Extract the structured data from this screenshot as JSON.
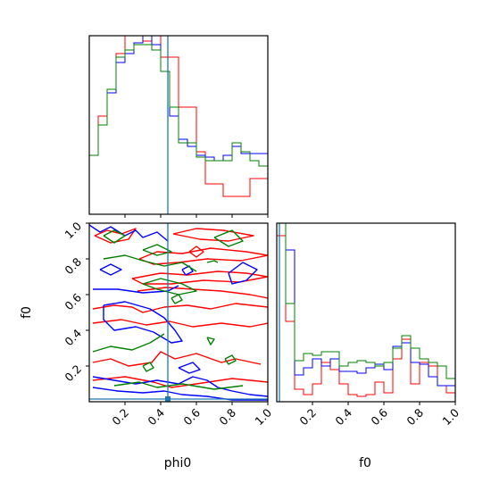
{
  "chart_data": {
    "type": "corner",
    "parameters": [
      "phi0",
      "f0"
    ],
    "xlabels": {
      "phi0": "phi0",
      "f0": "f0"
    },
    "ylabels": {
      "f0": "f0"
    },
    "ticks": {
      "phi0_x": [
        0.2,
        0.4,
        0.6,
        0.8,
        1.0
      ],
      "f0_y": [
        0.2,
        0.4,
        0.6,
        0.8,
        1.0
      ],
      "f0_x": [
        0.2,
        0.4,
        0.6,
        0.8,
        1.0
      ]
    },
    "tick_labels": {
      "phi0_x": [
        "0.2",
        "0.4",
        "0.6",
        "0.8",
        "1.0"
      ],
      "f0_y": [
        "0.2",
        "0.4",
        "0.6",
        "0.8",
        "1.0"
      ],
      "f0_x": [
        "0.2",
        "0.4",
        "0.6",
        "0.8",
        "1.0"
      ]
    },
    "xlim": [
      0,
      1
    ],
    "ylim": [
      0,
      1
    ],
    "truth": {
      "phi0": 0.44,
      "f0": 0.015
    },
    "truth_color": "#1f77b4",
    "series_colors": [
      "#ff0000",
      "#0000ff",
      "#008000"
    ],
    "hist_phi0": {
      "bin_edges": [
        0.0,
        0.05,
        0.1,
        0.15,
        0.2,
        0.25,
        0.3,
        0.35,
        0.4,
        0.45,
        0.5,
        0.55,
        0.6,
        0.65,
        0.7,
        0.75,
        0.8,
        0.85,
        0.9,
        0.95,
        1.0
      ],
      "ymax": 1.0,
      "series": [
        {
          "values": [
            0.33,
            0.55,
            0.7,
            0.9,
            1.0,
            1.0,
            0.97,
            1.0,
            0.88,
            0.88,
            0.6,
            0.6,
            0.35,
            0.17,
            0.17,
            0.1,
            0.1,
            0.1,
            0.2,
            0.2
          ]
        },
        {
          "values": [
            0.33,
            0.5,
            0.68,
            0.85,
            0.9,
            0.96,
            1.0,
            0.95,
            0.8,
            0.55,
            0.42,
            0.38,
            0.33,
            0.32,
            0.3,
            0.33,
            0.38,
            0.34,
            0.34,
            0.34
          ]
        },
        {
          "values": [
            0.33,
            0.5,
            0.7,
            0.88,
            0.92,
            0.95,
            0.95,
            0.92,
            0.8,
            0.6,
            0.4,
            0.4,
            0.32,
            0.3,
            0.3,
            0.3,
            0.4,
            0.35,
            0.3,
            0.27
          ]
        }
      ]
    },
    "hist_f0": {
      "bin_edges": [
        0.0,
        0.05,
        0.1,
        0.15,
        0.2,
        0.25,
        0.3,
        0.35,
        0.4,
        0.45,
        0.5,
        0.55,
        0.6,
        0.65,
        0.7,
        0.75,
        0.8,
        0.85,
        0.9,
        0.95,
        1.0
      ],
      "ymax": 1.0,
      "series": [
        {
          "values": [
            0.93,
            0.45,
            0.07,
            0.04,
            0.1,
            0.22,
            0.18,
            0.1,
            0.04,
            0.03,
            0.04,
            0.11,
            0.05,
            0.24,
            0.35,
            0.1,
            0.22,
            0.2,
            0.09,
            0.05
          ]
        },
        {
          "values": [
            1.0,
            0.85,
            0.15,
            0.19,
            0.24,
            0.2,
            0.24,
            0.17,
            0.17,
            0.16,
            0.19,
            0.21,
            0.18,
            0.31,
            0.33,
            0.22,
            0.21,
            0.14,
            0.09,
            0.09
          ]
        },
        {
          "values": [
            1.0,
            0.55,
            0.23,
            0.27,
            0.26,
            0.28,
            0.28,
            0.2,
            0.22,
            0.23,
            0.22,
            0.2,
            0.22,
            0.3,
            0.37,
            0.3,
            0.24,
            0.22,
            0.2,
            0.13
          ]
        }
      ]
    },
    "contours": [
      {
        "color": "#ff0000",
        "paths": [
          [
            [
              0.03,
              0.93
            ],
            [
              0.1,
              0.96
            ],
            [
              0.18,
              0.94
            ],
            [
              0.26,
              0.97
            ],
            [
              0.22,
              0.91
            ],
            [
              0.12,
              0.89
            ],
            [
              0.03,
              0.93
            ]
          ],
          [
            [
              0.47,
              0.94
            ],
            [
              0.6,
              0.97
            ],
            [
              0.75,
              0.96
            ],
            [
              0.92,
              0.93
            ],
            [
              0.78,
              0.9
            ],
            [
              0.62,
              0.91
            ],
            [
              0.47,
              0.94
            ]
          ],
          [
            [
              0.28,
              0.8
            ],
            [
              0.38,
              0.84
            ],
            [
              0.52,
              0.83
            ],
            [
              0.68,
              0.86
            ],
            [
              0.88,
              0.84
            ],
            [
              1.0,
              0.82
            ],
            [
              0.85,
              0.79
            ],
            [
              0.66,
              0.8
            ],
            [
              0.5,
              0.78
            ],
            [
              0.36,
              0.77
            ],
            [
              0.28,
              0.8
            ]
          ],
          [
            [
              0.24,
              0.69
            ],
            [
              0.4,
              0.72
            ],
            [
              0.55,
              0.71
            ],
            [
              0.72,
              0.73
            ],
            [
              0.88,
              0.72
            ],
            [
              1.0,
              0.7
            ],
            [
              0.84,
              0.67
            ],
            [
              0.64,
              0.68
            ],
            [
              0.46,
              0.66
            ],
            [
              0.3,
              0.66
            ],
            [
              0.24,
              0.69
            ]
          ],
          [
            [
              0.27,
              0.62
            ],
            [
              0.43,
              0.64
            ],
            [
              0.58,
              0.63
            ],
            [
              0.74,
              0.62
            ],
            [
              0.9,
              0.6
            ],
            [
              1.0,
              0.58
            ]
          ],
          [
            [
              0.02,
              0.52
            ],
            [
              0.14,
              0.54
            ],
            [
              0.24,
              0.53
            ],
            [
              0.3,
              0.5
            ],
            [
              0.42,
              0.53
            ],
            [
              0.55,
              0.54
            ],
            [
              0.68,
              0.52
            ],
            [
              0.82,
              0.55
            ],
            [
              1.0,
              0.53
            ]
          ],
          [
            [
              0.02,
              0.44
            ],
            [
              0.18,
              0.46
            ],
            [
              0.32,
              0.43
            ],
            [
              0.45,
              0.45
            ],
            [
              0.58,
              0.42
            ],
            [
              0.74,
              0.44
            ],
            [
              0.9,
              0.42
            ],
            [
              1.0,
              0.44
            ]
          ],
          [
            [
              0.02,
              0.22
            ],
            [
              0.12,
              0.24
            ],
            [
              0.22,
              0.2
            ],
            [
              0.35,
              0.22
            ],
            [
              0.4,
              0.28
            ],
            [
              0.48,
              0.24
            ],
            [
              0.6,
              0.27
            ],
            [
              0.74,
              0.22
            ],
            [
              0.82,
              0.24
            ],
            [
              0.96,
              0.21
            ]
          ],
          [
            [
              0.02,
              0.12
            ],
            [
              0.2,
              0.14
            ],
            [
              0.36,
              0.11
            ],
            [
              0.46,
              0.08
            ],
            [
              0.6,
              0.1
            ],
            [
              0.8,
              0.13
            ],
            [
              1.0,
              0.11
            ]
          ],
          [
            [
              0.56,
              0.84
            ],
            [
              0.6,
              0.87
            ],
            [
              0.64,
              0.84
            ],
            [
              0.6,
              0.81
            ],
            [
              0.56,
              0.84
            ]
          ]
        ]
      },
      {
        "color": "#0000ff",
        "paths": [
          [
            [
              0.0,
              0.99
            ],
            [
              0.06,
              0.95
            ],
            [
              0.12,
              0.98
            ],
            [
              0.2,
              0.93
            ],
            [
              0.26,
              0.96
            ],
            [
              0.3,
              0.92
            ],
            [
              0.38,
              0.95
            ],
            [
              0.44,
              0.9
            ]
          ],
          [
            [
              0.06,
              0.74
            ],
            [
              0.12,
              0.77
            ],
            [
              0.18,
              0.74
            ],
            [
              0.12,
              0.71
            ],
            [
              0.06,
              0.74
            ]
          ],
          [
            [
              0.02,
              0.63
            ],
            [
              0.16,
              0.63
            ],
            [
              0.3,
              0.61
            ],
            [
              0.44,
              0.62
            ],
            [
              0.5,
              0.65
            ]
          ],
          [
            [
              0.08,
              0.54
            ],
            [
              0.2,
              0.56
            ],
            [
              0.34,
              0.52
            ],
            [
              0.42,
              0.47
            ],
            [
              0.48,
              0.4
            ],
            [
              0.52,
              0.34
            ],
            [
              0.46,
              0.33
            ],
            [
              0.36,
              0.39
            ],
            [
              0.26,
              0.42
            ],
            [
              0.14,
              0.4
            ],
            [
              0.08,
              0.46
            ],
            [
              0.08,
              0.54
            ]
          ],
          [
            [
              0.78,
              0.72
            ],
            [
              0.86,
              0.78
            ],
            [
              0.94,
              0.74
            ],
            [
              0.88,
              0.68
            ],
            [
              0.8,
              0.66
            ],
            [
              0.78,
              0.72
            ]
          ],
          [
            [
              0.02,
              0.14
            ],
            [
              0.14,
              0.12
            ],
            [
              0.26,
              0.1
            ],
            [
              0.38,
              0.12
            ],
            [
              0.5,
              0.1
            ],
            [
              0.58,
              0.14
            ],
            [
              0.66,
              0.12
            ],
            [
              0.72,
              0.08
            ],
            [
              0.8,
              0.06
            ],
            [
              0.9,
              0.04
            ],
            [
              1.0,
              0.03
            ]
          ],
          [
            [
              0.02,
              0.08
            ],
            [
              0.16,
              0.06
            ],
            [
              0.3,
              0.05
            ],
            [
              0.42,
              0.06
            ],
            [
              0.52,
              0.04
            ],
            [
              0.66,
              0.03
            ],
            [
              0.8,
              0.01
            ],
            [
              1.0,
              0.01
            ]
          ],
          [
            [
              0.5,
              0.19
            ],
            [
              0.56,
              0.16
            ],
            [
              0.62,
              0.18
            ],
            [
              0.58,
              0.22
            ],
            [
              0.5,
              0.19
            ]
          ],
          [
            [
              0.52,
              0.74
            ],
            [
              0.56,
              0.76
            ],
            [
              0.58,
              0.73
            ],
            [
              0.54,
              0.71
            ],
            [
              0.52,
              0.74
            ]
          ]
        ]
      },
      {
        "color": "#008000",
        "paths": [
          [
            [
              0.08,
              0.93
            ],
            [
              0.14,
              0.96
            ],
            [
              0.2,
              0.93
            ],
            [
              0.14,
              0.89
            ],
            [
              0.08,
              0.93
            ]
          ],
          [
            [
              0.3,
              0.85
            ],
            [
              0.38,
              0.82
            ],
            [
              0.46,
              0.84
            ],
            [
              0.38,
              0.88
            ],
            [
              0.3,
              0.85
            ]
          ],
          [
            [
              0.08,
              0.8
            ],
            [
              0.2,
              0.82
            ],
            [
              0.3,
              0.79
            ],
            [
              0.42,
              0.76
            ],
            [
              0.52,
              0.78
            ],
            [
              0.6,
              0.73
            ]
          ],
          [
            [
              0.3,
              0.66
            ],
            [
              0.4,
              0.69
            ],
            [
              0.52,
              0.66
            ],
            [
              0.6,
              0.62
            ],
            [
              0.5,
              0.6
            ],
            [
              0.38,
              0.63
            ],
            [
              0.3,
              0.66
            ]
          ],
          [
            [
              0.02,
              0.28
            ],
            [
              0.12,
              0.31
            ],
            [
              0.24,
              0.29
            ],
            [
              0.34,
              0.33
            ],
            [
              0.42,
              0.38
            ]
          ],
          [
            [
              0.14,
              0.09
            ],
            [
              0.28,
              0.11
            ],
            [
              0.38,
              0.08
            ],
            [
              0.52,
              0.1
            ],
            [
              0.7,
              0.07
            ],
            [
              0.86,
              0.09
            ]
          ],
          [
            [
              0.7,
              0.92
            ],
            [
              0.8,
              0.96
            ],
            [
              0.86,
              0.9
            ],
            [
              0.78,
              0.87
            ],
            [
              0.7,
              0.92
            ]
          ],
          [
            [
              0.66,
              0.78
            ],
            [
              0.7,
              0.79
            ],
            [
              0.72,
              0.78
            ]
          ],
          [
            [
              0.66,
              0.36
            ],
            [
              0.68,
              0.32
            ],
            [
              0.7,
              0.35
            ],
            [
              0.66,
              0.36
            ]
          ],
          [
            [
              0.76,
              0.24
            ],
            [
              0.8,
              0.26
            ],
            [
              0.82,
              0.23
            ],
            [
              0.78,
              0.21
            ],
            [
              0.76,
              0.24
            ]
          ],
          [
            [
              0.3,
              0.2
            ],
            [
              0.34,
              0.22
            ],
            [
              0.36,
              0.19
            ],
            [
              0.32,
              0.17
            ],
            [
              0.3,
              0.2
            ]
          ],
          [
            [
              0.46,
              0.58
            ],
            [
              0.5,
              0.6
            ],
            [
              0.52,
              0.57
            ],
            [
              0.48,
              0.55
            ],
            [
              0.46,
              0.58
            ]
          ]
        ]
      }
    ]
  }
}
